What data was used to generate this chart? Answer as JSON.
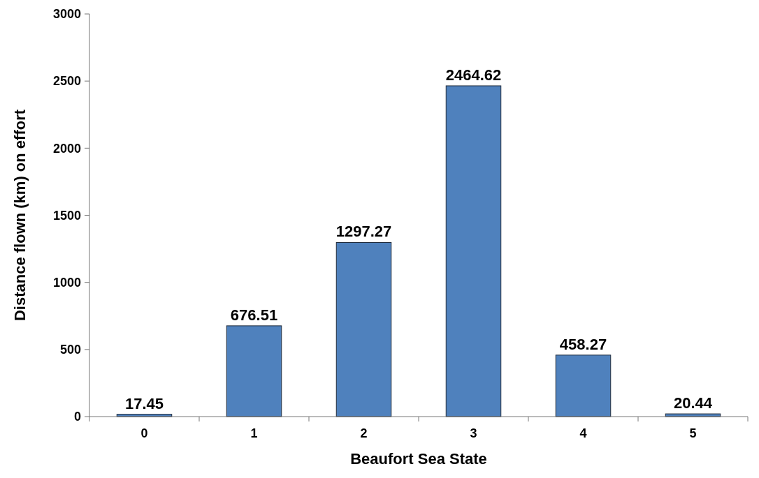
{
  "chart_data": {
    "type": "bar",
    "xlabel": "Beaufort Sea State",
    "ylabel": "Distance flown (km) on effort",
    "categories": [
      "0",
      "1",
      "2",
      "3",
      "4",
      "5"
    ],
    "values": [
      17.45,
      676.51,
      1297.27,
      2464.62,
      458.27,
      20.44
    ],
    "color": "#4f81bd",
    "ylim": [
      0,
      3000
    ],
    "yticks": [
      0,
      500,
      1000,
      1500,
      2000,
      2500,
      3000
    ],
    "data_labels": true,
    "grid": false
  }
}
